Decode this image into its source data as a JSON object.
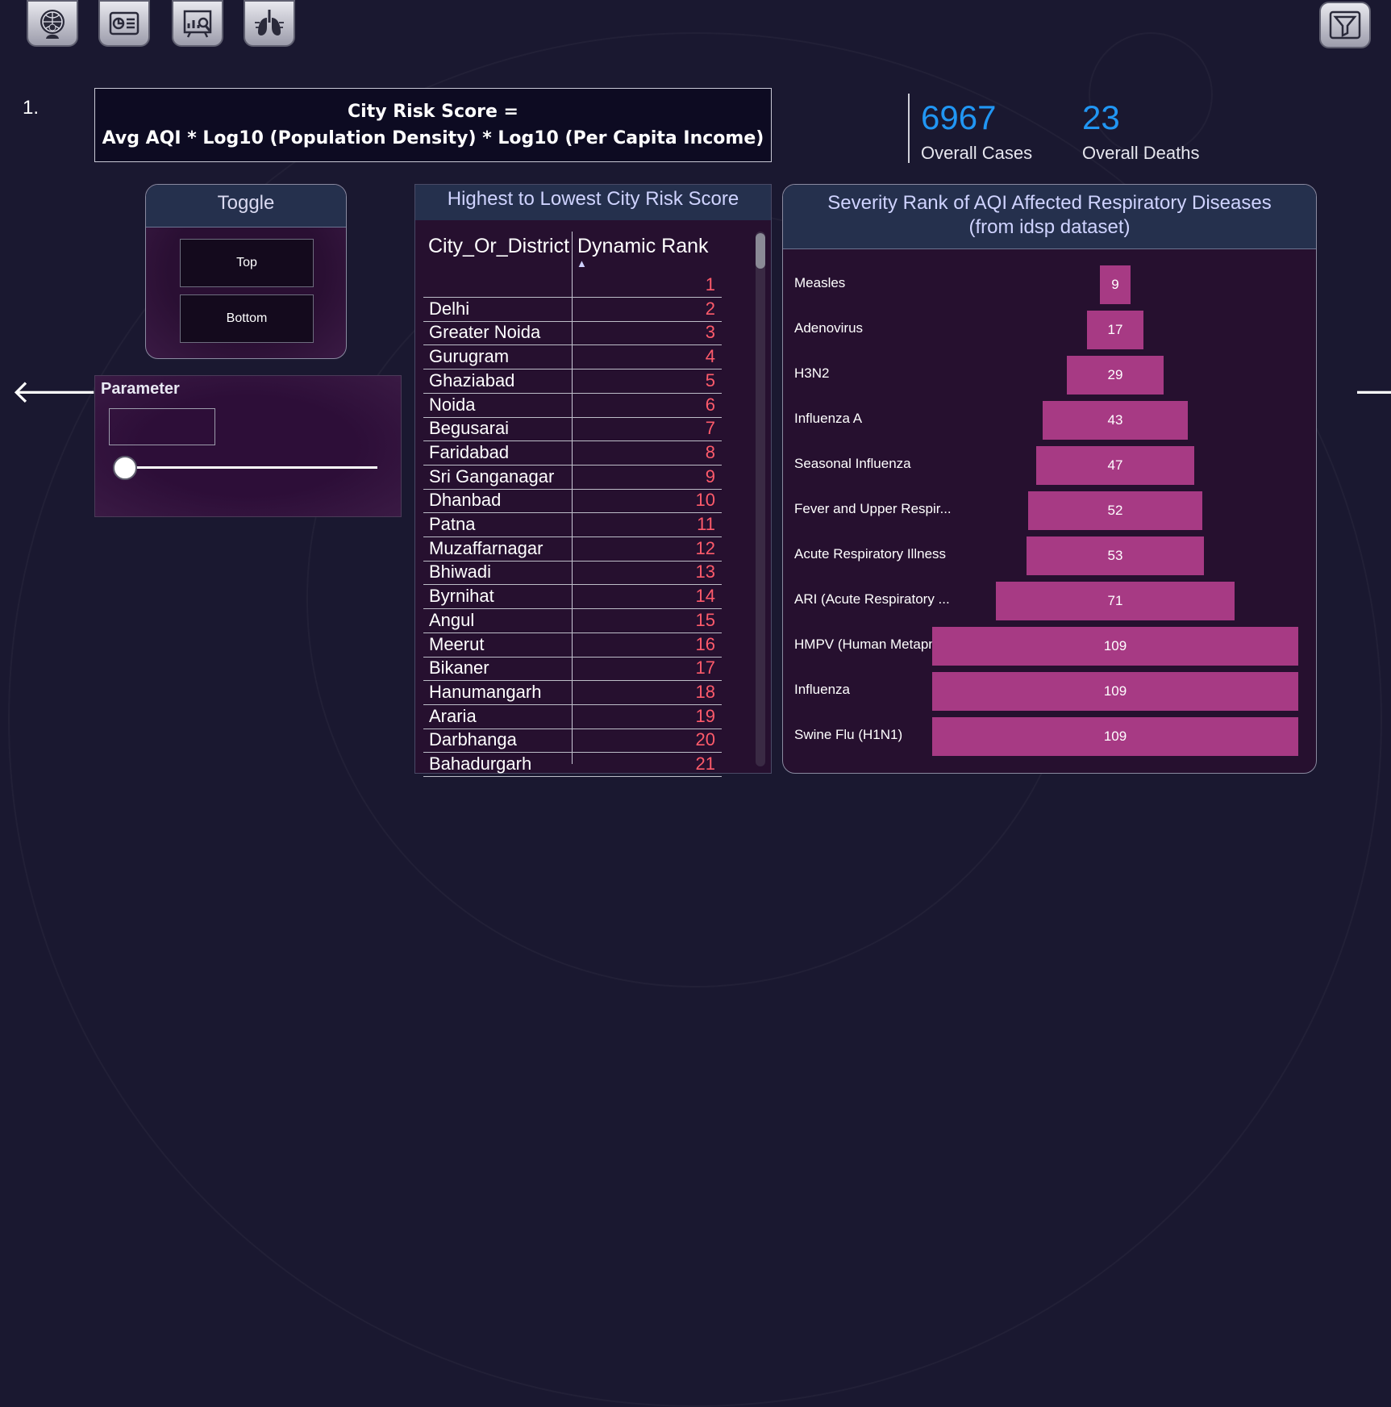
{
  "nav": {
    "icons": [
      "globe-person-icon",
      "report-list-icon",
      "analytics-board-icon",
      "lungs-icon"
    ],
    "filter_icon": "filter-icon"
  },
  "step_number": "1.",
  "formula": {
    "line1": "City Risk Score =",
    "line2": "Avg AQI * Log10 (Population Density) * Log10 (Per Capita Income)"
  },
  "kpis": {
    "cases_value": "6967",
    "cases_label": "Overall Cases",
    "deaths_value": "23",
    "deaths_label": "Overall Deaths"
  },
  "toggle": {
    "title": "Toggle",
    "top_label": "Top",
    "bottom_label": "Bottom"
  },
  "parameter": {
    "title": "Parameter",
    "value": ""
  },
  "city_table": {
    "title": "Highest to Lowest City Risk Score",
    "col_city": "City_Or_District",
    "col_rank": "Dynamic Rank",
    "sort_indicator": "▲",
    "rows": [
      {
        "city": "",
        "rank": "1"
      },
      {
        "city": "Delhi",
        "rank": "2"
      },
      {
        "city": "Greater Noida",
        "rank": "3"
      },
      {
        "city": "Gurugram",
        "rank": "4"
      },
      {
        "city": "Ghaziabad",
        "rank": "5"
      },
      {
        "city": "Noida",
        "rank": "6"
      },
      {
        "city": "Begusarai",
        "rank": "7"
      },
      {
        "city": "Faridabad",
        "rank": "8"
      },
      {
        "city": "Sri Ganganagar",
        "rank": "9"
      },
      {
        "city": "Dhanbad",
        "rank": "10"
      },
      {
        "city": "Patna",
        "rank": "11"
      },
      {
        "city": "Muzaffarnagar",
        "rank": "12"
      },
      {
        "city": "Bhiwadi",
        "rank": "13"
      },
      {
        "city": "Byrnihat",
        "rank": "14"
      },
      {
        "city": "Angul",
        "rank": "15"
      },
      {
        "city": "Meerut",
        "rank": "16"
      },
      {
        "city": "Bikaner",
        "rank": "17"
      },
      {
        "city": "Hanumangarh",
        "rank": "18"
      },
      {
        "city": "Araria",
        "rank": "19"
      },
      {
        "city": "Darbhanga",
        "rank": "20"
      },
      {
        "city": "Bahadurgarh",
        "rank": "21"
      }
    ]
  },
  "severity": {
    "title_line1": "Severity Rank of AQI Affected Respiratory Diseases",
    "title_line2": "(from idsp dataset)",
    "bar_color": "#a73a84",
    "items": [
      {
        "label": "Measles",
        "value": 9
      },
      {
        "label": "Adenovirus",
        "value": 17
      },
      {
        "label": "H3N2",
        "value": 29
      },
      {
        "label": "Influenza A",
        "value": 43
      },
      {
        "label": "Seasonal Influenza",
        "value": 47
      },
      {
        "label": "Fever and Upper Respir...",
        "value": 52
      },
      {
        "label": "Acute Respiratory Illness",
        "value": 53
      },
      {
        "label": "ARI (Acute Respiratory ...",
        "value": 71
      },
      {
        "label": "HMPV (Human Metapn...",
        "value": 109
      },
      {
        "label": "Influenza",
        "value": 109
      },
      {
        "label": "Swine Flu (H1N1)",
        "value": 109
      }
    ]
  },
  "arrows": {
    "prev": "🡐",
    "next": "🡒"
  }
}
